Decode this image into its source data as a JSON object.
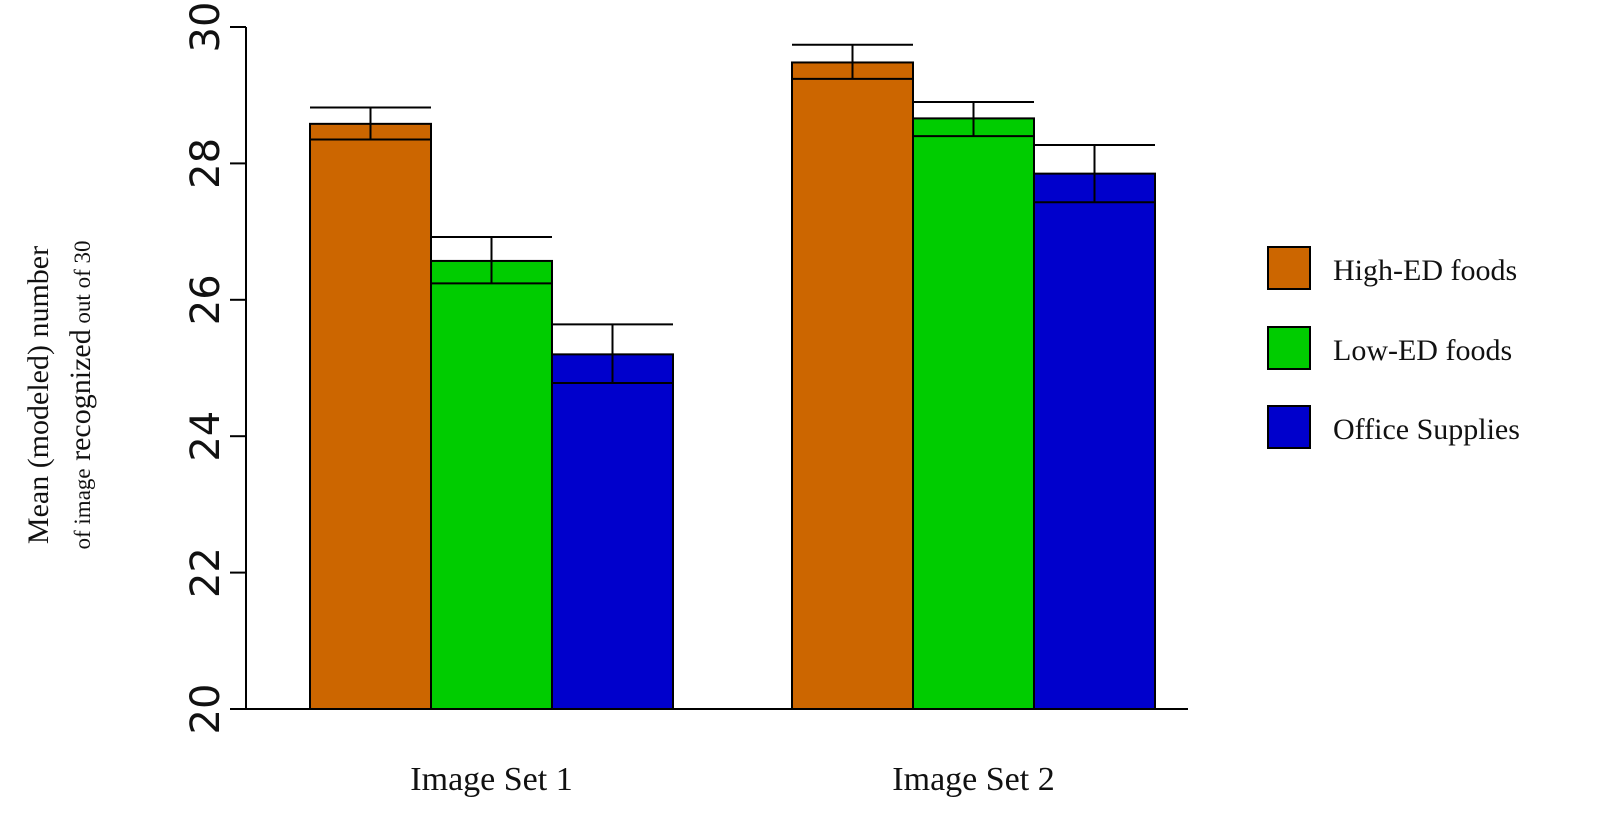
{
  "chart_data": {
    "type": "bar",
    "title": "",
    "xlabel": "",
    "ylabel_parts": [
      {
        "text": "Mean (modeled) number",
        "size": "large",
        "line": 1
      },
      {
        "text": "of image",
        "size": "small",
        "line": 2
      },
      {
        "text": " recognized",
        "size": "large",
        "line": 2
      },
      {
        "text": " out of 30",
        "size": "small",
        "line": 2
      }
    ],
    "ylim": [
      20,
      30
    ],
    "yticks": [
      "20",
      "22",
      "24",
      "26",
      "28",
      "30"
    ],
    "categories": [
      "Image Set 1",
      "Image Set 2"
    ],
    "series": [
      {
        "name": "High-ED  foods",
        "color": "#cc6600",
        "values": [
          28.58,
          29.48
        ],
        "error_low": [
          28.35,
          29.24
        ],
        "error_high": [
          28.82,
          29.74
        ]
      },
      {
        "name": "Low-ED foods",
        "color": "#00cc00",
        "values": [
          26.57,
          28.66
        ],
        "error_low": [
          26.24,
          28.4
        ],
        "error_high": [
          26.92,
          28.9
        ]
      },
      {
        "name": "Office Supplies",
        "color": "#0000cc",
        "values": [
          25.2,
          27.85
        ],
        "error_low": [
          24.78,
          27.43
        ],
        "error_high": [
          25.64,
          28.27
        ]
      }
    ],
    "grid": false,
    "legend_position": "right"
  }
}
